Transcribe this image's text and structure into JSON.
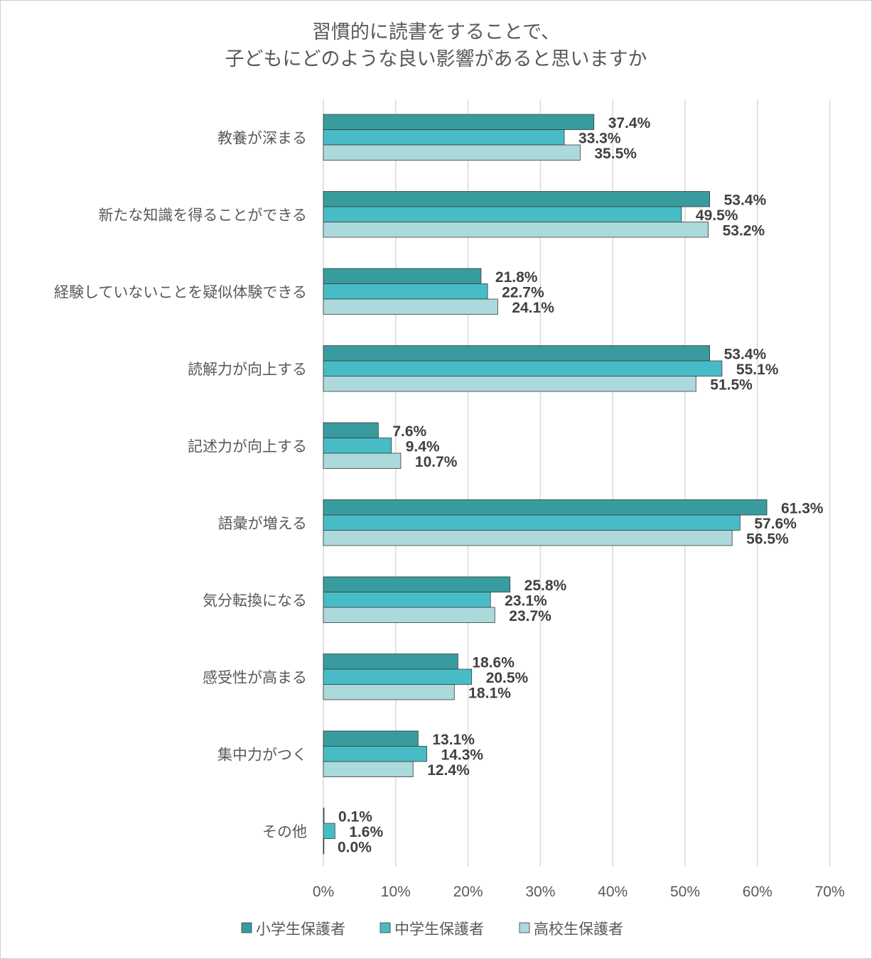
{
  "chart_data": {
    "type": "bar",
    "orientation": "horizontal",
    "title_line1": "習慣的に読書をすることで、",
    "title_line2": "子どもにどのような良い影響があると思いますか",
    "categories": [
      "教養が深まる",
      "新たな知識を得ることができる",
      "経験していないことを疑似体験できる",
      "読解力が向上する",
      "記述力が向上する",
      "語彙が増える",
      "気分転換になる",
      "感受性が高まる",
      "集中力がつく",
      "その他"
    ],
    "series": [
      {
        "name": "小学生保護者",
        "color": "#389c9f",
        "values": [
          37.4,
          53.4,
          21.8,
          53.4,
          7.6,
          61.3,
          25.8,
          18.6,
          13.1,
          0.1
        ]
      },
      {
        "name": "中学生保護者",
        "color": "#48bcc6",
        "values": [
          33.3,
          49.5,
          22.7,
          55.1,
          9.4,
          57.6,
          23.1,
          20.5,
          14.3,
          1.6
        ]
      },
      {
        "name": "高校生保護者",
        "color": "#acd9db",
        "values": [
          35.5,
          53.2,
          24.1,
          51.5,
          10.7,
          56.5,
          23.7,
          18.1,
          12.4,
          0.0
        ]
      }
    ],
    "xlim": [
      0,
      70
    ],
    "xticks": [
      "0%",
      "10%",
      "20%",
      "30%",
      "40%",
      "50%",
      "60%",
      "70%"
    ],
    "value_suffix": "%",
    "grid": true,
    "legend_position": "bottom"
  }
}
